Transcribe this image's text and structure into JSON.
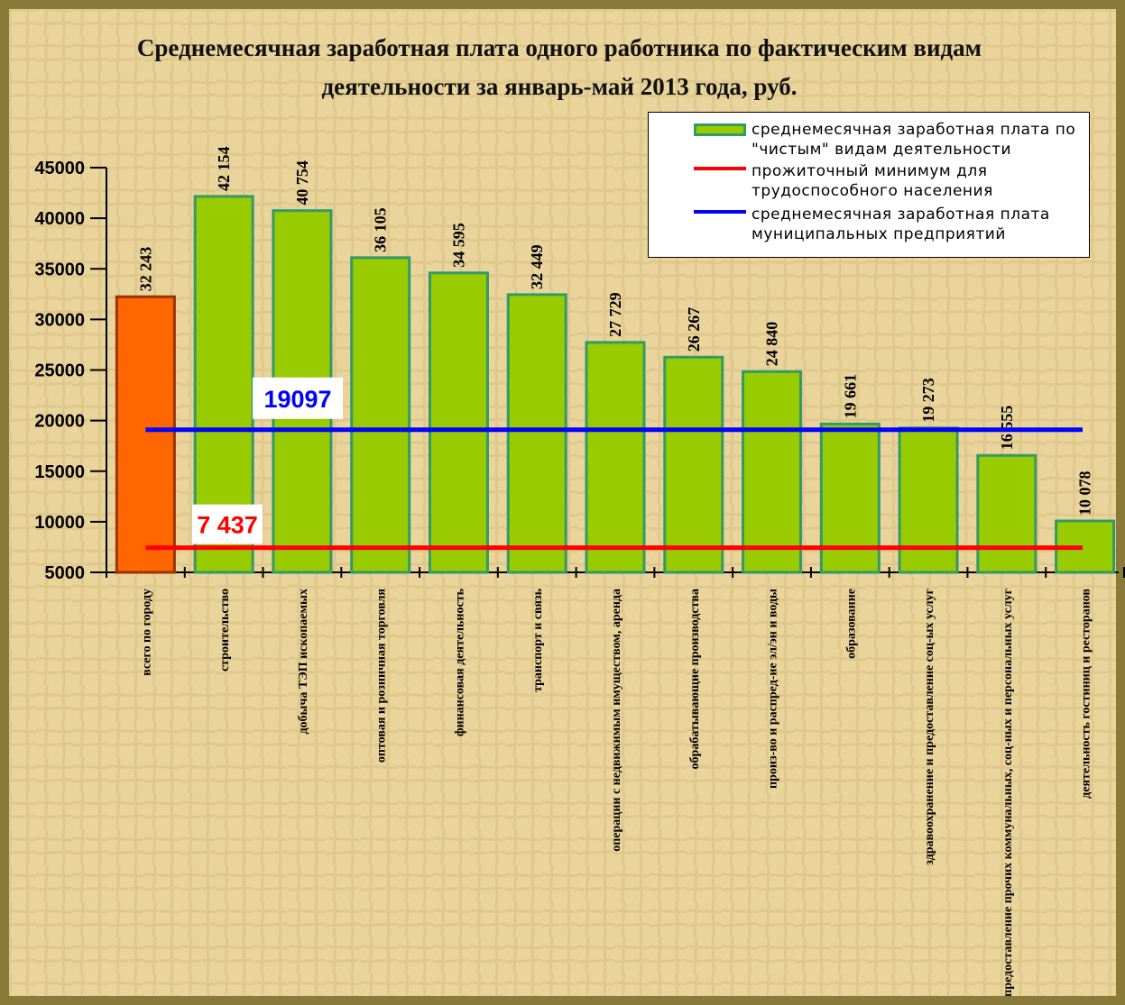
{
  "chart_data": {
    "type": "bar",
    "title": "Среднемесячная заработная плата одного работника по фактическим видам деятельности за январь-май 2013 года, руб.",
    "categories": [
      "всего по городу",
      "строительство",
      "добыча ТЭП ископаемых",
      "оптовая и розничная торговля",
      "финансовая деятельность",
      "транспорт и связь",
      "операции с недвижимым имуществом, аренда",
      "обрабатывающие производства",
      "произ-во и распред-ие эл/эн и воды",
      "образование",
      "здравоохранение и предоставление соц-ых услуг",
      "предоставление прочих коммунальных, соц-ных и персональных услуг",
      "деятельность гостиниц и ресторанов"
    ],
    "series": [
      {
        "name": "среднемесячная заработная плата по \"чистым\" видам деятельности",
        "color": "#99cc00",
        "colors": [
          "#ff6600",
          "#99cc00",
          "#99cc00",
          "#99cc00",
          "#99cc00",
          "#99cc00",
          "#99cc00",
          "#99cc00",
          "#99cc00",
          "#99cc00",
          "#99cc00",
          "#99cc00",
          "#99cc00"
        ],
        "values": [
          32243,
          42154,
          40754,
          36105,
          34595,
          32449,
          27729,
          26267,
          24840,
          19661,
          19273,
          16555,
          10078
        ],
        "value_labels": [
          "32 243",
          "42 154",
          "40 754",
          "36 105",
          "34 595",
          "32 449",
          "27 729",
          "26 267",
          "24 840",
          "19 661",
          "19 273",
          "16 555",
          "10 078"
        ]
      }
    ],
    "lines": [
      {
        "name": "прожиточный минимум для трудоспособного населения",
        "color": "#ff0000",
        "value": 7437,
        "value_label": "7 437"
      },
      {
        "name": "среднемесячная заработная плата муниципальных предприятий",
        "color": "#0000ff",
        "value": 19097,
        "value_label": "19097"
      }
    ],
    "ylim": [
      5000,
      45000
    ],
    "yticks": [
      5000,
      10000,
      15000,
      20000,
      25000,
      30000,
      35000,
      40000,
      45000
    ],
    "legend": "top-right"
  }
}
